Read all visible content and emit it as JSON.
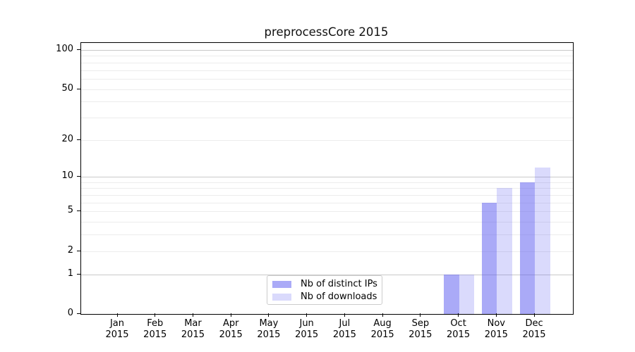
{
  "chart_data": {
    "type": "bar",
    "title": "preprocessCore 2015",
    "categories": [
      "Jan 2015",
      "Feb 2015",
      "Mar 2015",
      "Apr 2015",
      "May 2015",
      "Jun 2015",
      "Jul 2015",
      "Aug 2015",
      "Sep 2015",
      "Oct 2015",
      "Nov 2015",
      "Dec 2015"
    ],
    "series": [
      {
        "name": "Nb of distinct IPs",
        "color": "#5555f0",
        "alpha": 0.5,
        "values": [
          0,
          0,
          0,
          0,
          0,
          0,
          0,
          0,
          0,
          1,
          6,
          9
        ]
      },
      {
        "name": "Nb of downloads",
        "color": "#5555f0",
        "alpha": 0.22,
        "values": [
          0,
          0,
          0,
          0,
          0,
          0,
          0,
          0,
          0,
          1,
          8,
          12
        ]
      }
    ],
    "y_axis": {
      "scale": "log(1+y)",
      "ticks": [
        0,
        1,
        2,
        5,
        10,
        20,
        50,
        100
      ],
      "major_gridlines": [
        1,
        10,
        100
      ],
      "minor_gridlines": [
        2,
        3,
        4,
        5,
        6,
        7,
        8,
        9,
        20,
        30,
        40,
        50,
        60,
        70,
        80,
        90
      ]
    },
    "legend": {
      "position": "lower center",
      "entries": [
        "Nb of distinct IPs",
        "Nb of downloads"
      ]
    },
    "grid": true
  },
  "colors": {
    "background": "#ffffff",
    "spine": "#000000",
    "text": "#000000",
    "major_grid": "#c9c9c9",
    "minor_grid": "#ececec",
    "legend_border": "#cccccc",
    "bar_dark_rendered": "#a8a8f8",
    "bar_light_rendered": "#d9d9fb"
  }
}
